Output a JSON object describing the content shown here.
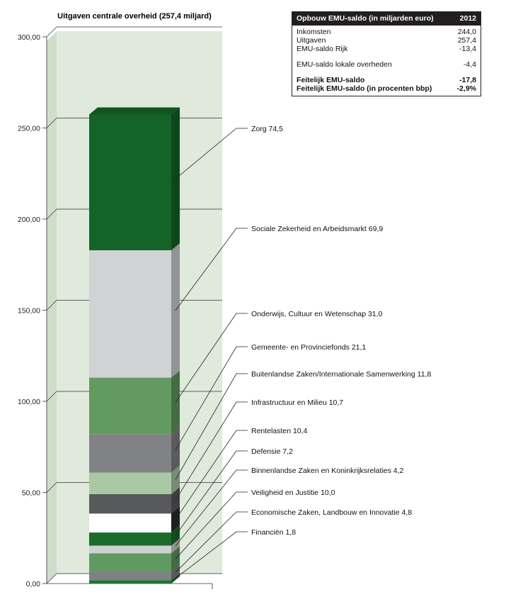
{
  "chart_data": {
    "type": "bar",
    "stacked": true,
    "title": "Uitgaven centrale overheid (257,4 miljard)",
    "ylim": [
      0,
      300
    ],
    "yticks": [
      "0,00",
      "50,00",
      "100,00",
      "150,00",
      "200,00",
      "250,00",
      "300,00"
    ],
    "ytick_values": [
      0,
      50,
      100,
      150,
      200,
      250,
      300
    ],
    "total": 257.4,
    "segments": [
      {
        "label": "Financiën 1,8",
        "value": 1.8,
        "color": "#1a7a2e"
      },
      {
        "label": "Economische Zaken, Landbouw en Innovatie 4,8",
        "value": 4.8,
        "color": "#7e8083"
      },
      {
        "label": "Veiligheid en Justitie 10,0",
        "value": 10.0,
        "color": "#5f9a63"
      },
      {
        "label": "Binnenlandse Zaken en Koninkrijksrelaties 4,2",
        "value": 4.2,
        "color": "#cfd0d2"
      },
      {
        "label": "Defensie 7,2",
        "value": 7.2,
        "color": "#1b6b2a"
      },
      {
        "label": "Rentelasten 10,4",
        "value": 10.4,
        "color": "#ffffff"
      },
      {
        "label": "Infrastructuur en Milieu 10,7",
        "value": 10.7,
        "color": "#58595b"
      },
      {
        "label": "Buitenlandse Zaken/Internationale Samenwerking 11,8",
        "value": 11.8,
        "color": "#a9c9a4"
      },
      {
        "label": "Gemeente- en Provinciefonds 21,1",
        "value": 21.1,
        "color": "#808285"
      },
      {
        "label": "Onderwijs, Cultuur en Wetenschap 31,0",
        "value": 31.0,
        "color": "#639a61"
      },
      {
        "label": "Sociale Zekerheid en Arbeidsmarkt 69,9",
        "value": 69.9,
        "color": "#d1d2d4"
      },
      {
        "label": "Zorg 74,5",
        "value": 74.5,
        "color": "#146427"
      }
    ]
  },
  "emu_table": {
    "title": "Opbouw EMU-saldo (in miljarden euro)",
    "year": "2012",
    "rows": [
      {
        "label": "Inkomsten",
        "value": "244,0"
      },
      {
        "label": "Uitgaven",
        "value": "257,4"
      },
      {
        "label": "EMU-saldo Rijk",
        "value": "-13,4"
      },
      {
        "label": "EMU-saldo lokale overheden",
        "value": "-4,4"
      },
      {
        "label": "Feitelijk EMU-saldo",
        "value": "-17,8"
      },
      {
        "label": "Feitelijk EMU-saldo (in procenten bbp)",
        "value": "-2,9%"
      }
    ]
  }
}
